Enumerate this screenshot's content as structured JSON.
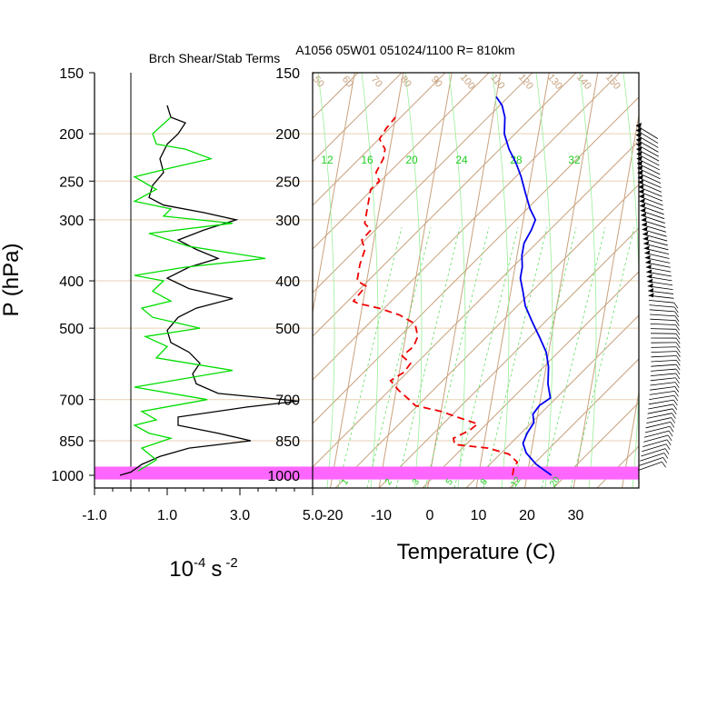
{
  "chart_data": [
    {
      "type": "line",
      "title": "Brch Shear/Stab Terms",
      "ylabel": "P (hPa)",
      "xlabel_base": "10",
      "xlabel_exp": "-4",
      "xlabel_unit": "s",
      "xlabel_unit_exp": "-2",
      "y_scale": "log",
      "ylim": [
        1000,
        150
      ],
      "xlim": [
        -1.0,
        5.0
      ],
      "x_ticks": [
        "-1.0",
        "1.0",
        "3.0",
        "5.0"
      ],
      "y_ticks": [
        150,
        200,
        250,
        300,
        400,
        500,
        700,
        850,
        1000
      ],
      "grid": true,
      "series": [
        {
          "color": "#000000",
          "points": [
            [
              1.0,
              175
            ],
            [
              1.1,
              185
            ],
            [
              1.5,
              190
            ],
            [
              1.3,
              200
            ],
            [
              1.0,
              210
            ],
            [
              0.8,
              225
            ],
            [
              0.9,
              240
            ],
            [
              0.6,
              255
            ],
            [
              0.5,
              270
            ],
            [
              0.9,
              280
            ],
            [
              2.0,
              290
            ],
            [
              2.9,
              300
            ],
            [
              2.0,
              315
            ],
            [
              1.3,
              330
            ],
            [
              1.8,
              345
            ],
            [
              2.4,
              360
            ],
            [
              1.6,
              375
            ],
            [
              1.0,
              395
            ],
            [
              1.6,
              415
            ],
            [
              2.8,
              435
            ],
            [
              1.8,
              455
            ],
            [
              1.3,
              475
            ],
            [
              1.0,
              505
            ],
            [
              1.1,
              535
            ],
            [
              1.6,
              560
            ],
            [
              1.9,
              590
            ],
            [
              1.7,
              620
            ],
            [
              1.8,
              650
            ],
            [
              2.4,
              680
            ],
            [
              4.6,
              705
            ],
            [
              3.2,
              725
            ],
            [
              1.3,
              760
            ],
            [
              1.3,
              790
            ],
            [
              2.4,
              820
            ],
            [
              3.3,
              850
            ],
            [
              1.6,
              880
            ],
            [
              0.8,
              915
            ],
            [
              0.3,
              950
            ],
            [
              0.0,
              985
            ],
            [
              -0.3,
              1000
            ]
          ]
        },
        {
          "color": "#00dd00",
          "points": [
            [
              1.1,
              185
            ],
            [
              0.6,
              200
            ],
            [
              0.7,
              210
            ],
            [
              1.5,
              215
            ],
            [
              2.2,
              225
            ],
            [
              1.1,
              235
            ],
            [
              0.1,
              245
            ],
            [
              0.7,
              260
            ],
            [
              0.1,
              275
            ],
            [
              1.1,
              285
            ],
            [
              0.9,
              295
            ],
            [
              2.8,
              305
            ],
            [
              0.5,
              320
            ],
            [
              1.6,
              340
            ],
            [
              3.7,
              360
            ],
            [
              1.5,
              375
            ],
            [
              0.1,
              390
            ],
            [
              0.9,
              400
            ],
            [
              0.6,
              420
            ],
            [
              1.1,
              440
            ],
            [
              0.3,
              455
            ],
            [
              0.6,
              475
            ],
            [
              1.9,
              500
            ],
            [
              0.4,
              520
            ],
            [
              1.0,
              545
            ],
            [
              0.7,
              575
            ],
            [
              2.8,
              610
            ],
            [
              0.1,
              660
            ],
            [
              2.1,
              700
            ],
            [
              0.3,
              740
            ],
            [
              0.7,
              770
            ],
            [
              0.1,
              790
            ],
            [
              0.5,
              820
            ],
            [
              1.1,
              840
            ],
            [
              0.3,
              880
            ],
            [
              0.7,
              930
            ],
            [
              0.2,
              980
            ]
          ]
        }
      ],
      "highlight_band": {
        "p_bottom": 1020,
        "p_top": 960,
        "color": "#ff66ff"
      }
    },
    {
      "type": "line",
      "title": "A1056 05W01 051024/1100 R= 810km",
      "xlabel": "Temperature (C)",
      "y_scale": "log",
      "ylim": [
        1000,
        150
      ],
      "xlim": [
        -23,
        42
      ],
      "x_ticks": [
        "-20",
        "-10",
        "0",
        "10",
        "20",
        "30"
      ],
      "y_ticks": [
        150,
        200,
        250,
        300,
        400,
        500,
        700,
        850,
        1000
      ],
      "mixing_ratio_labels_top": [
        "12",
        "16",
        "20",
        "24",
        "28",
        "32"
      ],
      "mixing_ratio_labels_bottom": [
        "1",
        "2",
        "3",
        "5",
        "8",
        "12",
        "20"
      ],
      "dry_adiabat_labels": [
        "50",
        "60",
        "70",
        "80",
        "90",
        "100",
        "110",
        "120",
        "130",
        "140",
        "150"
      ],
      "series": [
        {
          "name": "Temperature",
          "color": "#0000ee",
          "points": [
            [
              25.0,
              1000
            ],
            [
              21.5,
              950
            ],
            [
              19.0,
              900
            ],
            [
              18.0,
              860
            ],
            [
              18.5,
              820
            ],
            [
              19.5,
              780
            ],
            [
              19.0,
              750
            ],
            [
              20.0,
              720
            ],
            [
              22.0,
              695
            ],
            [
              21.0,
              650
            ],
            [
              20.5,
              600
            ],
            [
              19.5,
              560
            ],
            [
              17.5,
              520
            ],
            [
              15.5,
              485
            ],
            [
              13.5,
              450
            ],
            [
              12.5,
              420
            ],
            [
              11.5,
              395
            ],
            [
              11.5,
              375
            ],
            [
              11.0,
              355
            ],
            [
              11.0,
              335
            ],
            [
              12.0,
              315
            ],
            [
              12.5,
              300
            ],
            [
              11.0,
              285
            ],
            [
              9.5,
              265
            ],
            [
              8.0,
              245
            ],
            [
              6.5,
              230
            ],
            [
              4.5,
              215
            ],
            [
              3.0,
              200
            ],
            [
              2.5,
              185
            ],
            [
              1.5,
              175
            ],
            [
              0.0,
              168
            ]
          ]
        },
        {
          "name": "Dewpoint",
          "color": "#ee0000",
          "points": [
            [
              17.0,
              1000
            ],
            [
              17.0,
              970
            ],
            [
              17.5,
              940
            ],
            [
              15.5,
              905
            ],
            [
              11.0,
              880
            ],
            [
              4.0,
              865
            ],
            [
              3.5,
              840
            ],
            [
              6.5,
              810
            ],
            [
              8.0,
              785
            ],
            [
              3.5,
              760
            ],
            [
              0.0,
              740
            ],
            [
              -5.5,
              720
            ],
            [
              -7.0,
              700
            ],
            [
              -9.5,
              670
            ],
            [
              -11.5,
              640
            ],
            [
              -9.0,
              615
            ],
            [
              -8.0,
              590
            ],
            [
              -10.0,
              570
            ],
            [
              -8.0,
              545
            ],
            [
              -7.5,
              520
            ],
            [
              -8.5,
              490
            ],
            [
              -12.0,
              470
            ],
            [
              -16.5,
              455
            ],
            [
              -21.0,
              445
            ],
            [
              -22.0,
              440
            ],
            [
              -20.0,
              410
            ],
            [
              -22.0,
              400
            ],
            [
              -22.0,
              370
            ],
            [
              -21.5,
              345
            ],
            [
              -22.5,
              330
            ],
            [
              -21.0,
              315
            ],
            [
              -22.5,
              305
            ],
            [
              -22.5,
              260
            ],
            [
              -21.0,
              250
            ],
            [
              -22.0,
              240
            ],
            [
              -21.0,
              225
            ],
            [
              -21.0,
              215
            ],
            [
              -22.5,
              205
            ],
            [
              -21.5,
              195
            ],
            [
              -20.0,
              185
            ]
          ]
        }
      ],
      "wind_barbs_present": true,
      "highlight_band": {
        "p_bottom": 1020,
        "p_top": 960,
        "color": "#ff66ff"
      }
    }
  ]
}
